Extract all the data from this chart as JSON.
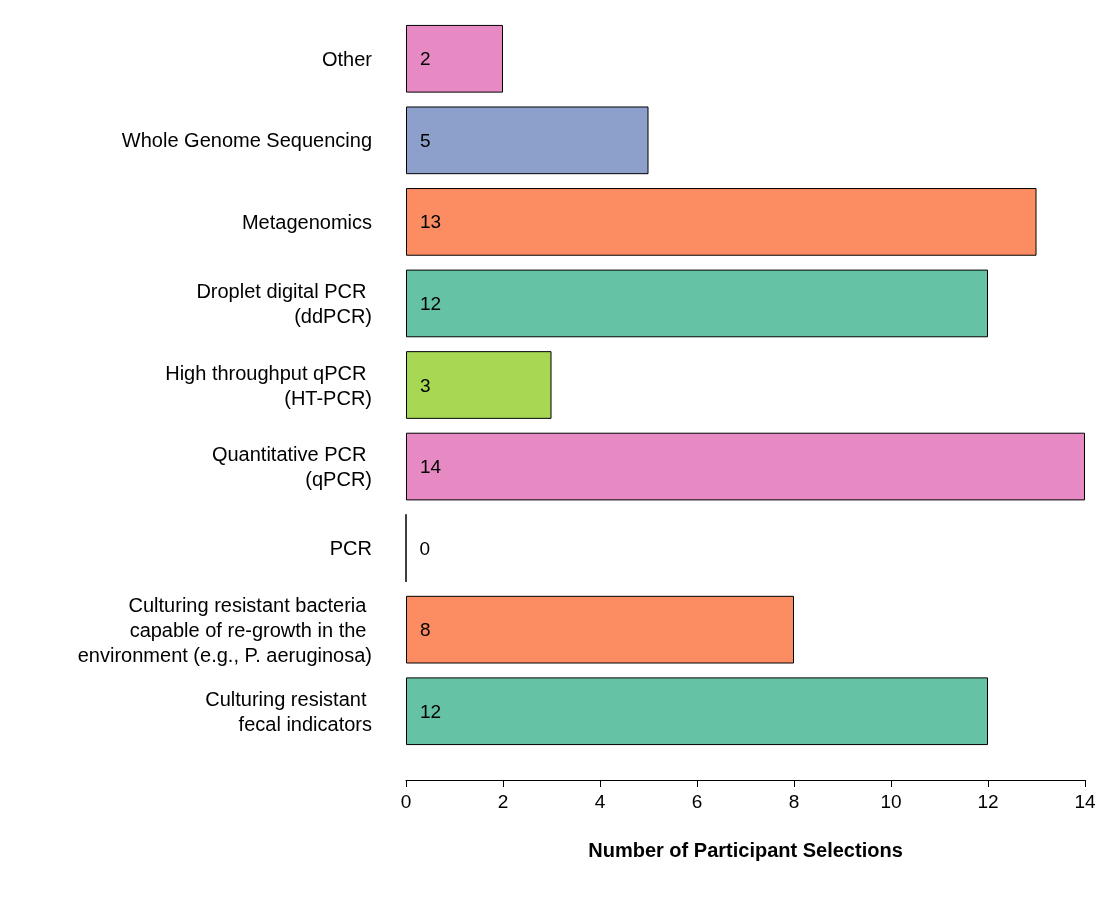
{
  "chart_data": {
    "type": "bar",
    "orientation": "horizontal",
    "xlabel": "Number of Participant Selections",
    "categories": [
      "Other",
      "Whole Genome Sequencing",
      "Metagenomics",
      "Droplet digital PCR \n(ddPCR)",
      "High throughput qPCR \n(HT-PCR)",
      "Quantitative PCR \n(qPCR)",
      "PCR",
      "Culturing resistant bacteria \ncapable of re-growth in the \nenvironment (e.g., P. aeruginosa)",
      "Culturing resistant \nfecal indicators"
    ],
    "values": [
      2,
      5,
      13,
      12,
      3,
      14,
      0,
      8,
      12
    ],
    "colors": [
      "#e78ac3",
      "#8da0cb",
      "#fc8d62",
      "#66c2a5",
      "#a6d854",
      "#e78ac3",
      "#000000",
      "#fc8d62",
      "#66c2a5"
    ],
    "xlim": [
      0,
      14
    ],
    "xticks": [
      0,
      2,
      4,
      6,
      8,
      10,
      12,
      14
    ],
    "data_labels": true,
    "grid": false
  }
}
